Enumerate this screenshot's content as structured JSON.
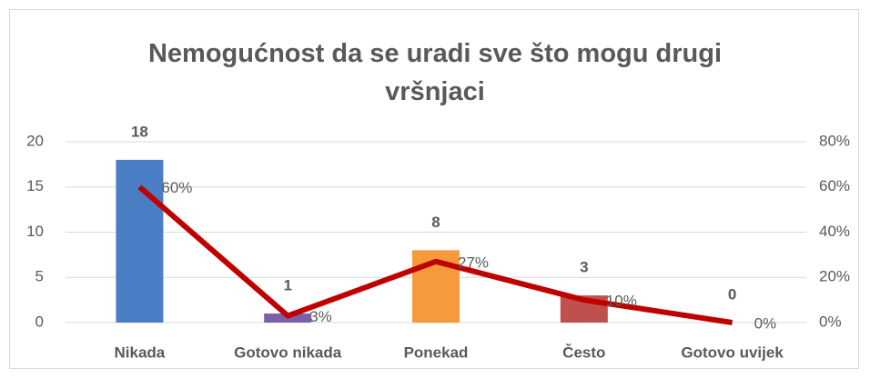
{
  "chart_data": {
    "type": "bar",
    "title": "Nemogućnost da se uradi sve što mogu drugi vršnjaci",
    "categories": [
      "Nikada",
      "Gotovo nikada",
      "Ponekad",
      "Često",
      "Gotovo uvijek"
    ],
    "series": [
      {
        "type": "bar",
        "colors": [
          "#4a7dc4",
          "#7b5fa8",
          "#f79a3e",
          "#c0504d",
          "#9bbb59"
        ],
        "values": [
          18,
          1,
          8,
          3,
          0
        ]
      },
      {
        "type": "line",
        "axis": "y2",
        "color": "#c00000",
        "values": [
          60,
          3,
          27,
          10,
          0
        ],
        "value_labels": [
          "60%",
          "3%",
          "27%",
          "10%",
          "0%"
        ]
      }
    ],
    "ylim": [
      0,
      20
    ],
    "yticks": [
      0,
      5,
      10,
      15,
      20
    ],
    "y2lim": [
      0,
      80
    ],
    "y2ticks": [
      {
        "value": 0,
        "label": "0%"
      },
      {
        "value": 20,
        "label": "20%"
      },
      {
        "value": 40,
        "label": "40%"
      },
      {
        "value": 60,
        "label": "60%"
      },
      {
        "value": 80,
        "label": "80%"
      }
    ],
    "grid": true
  }
}
